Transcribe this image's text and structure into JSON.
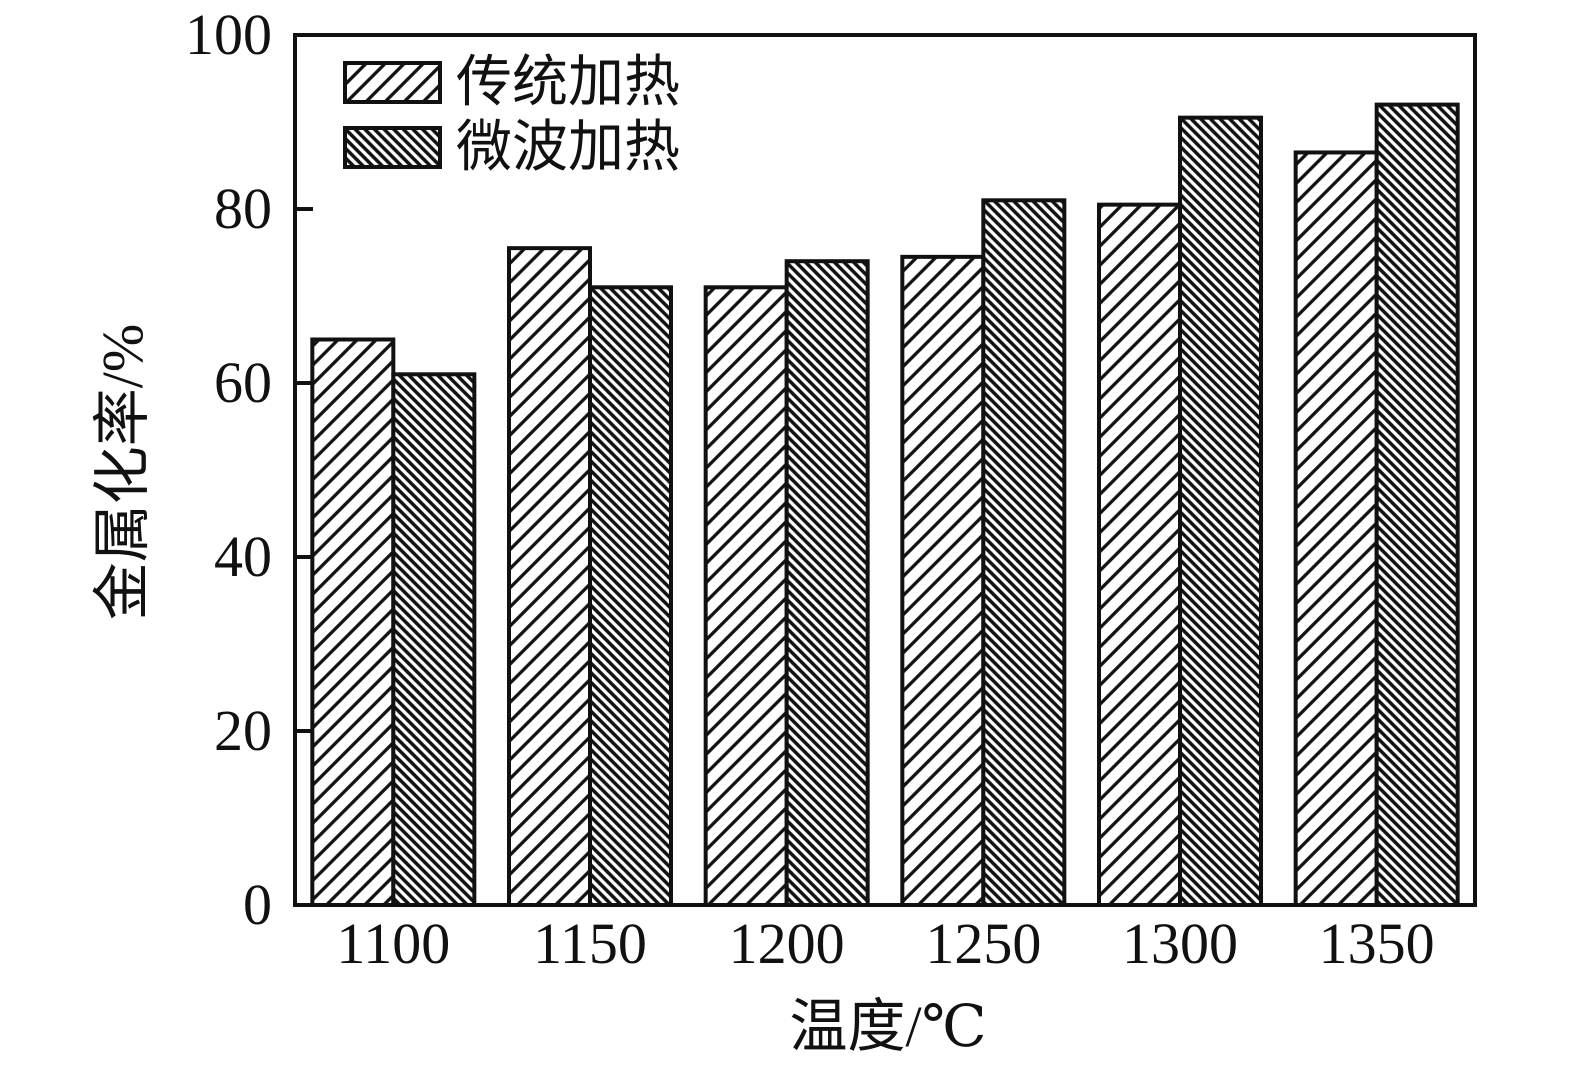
{
  "chart_data": {
    "type": "bar",
    "title": "",
    "categories": [
      "1100",
      "1150",
      "1200",
      "1250",
      "1300",
      "1350"
    ],
    "series": [
      {
        "name": "传统加热",
        "key": "traditional",
        "pattern_icon": "forward-diagonal-hatch",
        "values": [
          65,
          75.5,
          71,
          74.5,
          80.5,
          86.5
        ]
      },
      {
        "name": "微波加热",
        "key": "microwave",
        "pattern_icon": "backward-diagonal-hatch",
        "values": [
          61,
          71,
          74,
          81,
          90.5,
          92
        ]
      }
    ],
    "xlabel": "温度/℃",
    "ylabel": "金属化率/%",
    "ylim": [
      0,
      100
    ],
    "yticks": [
      0,
      20,
      40,
      60,
      80,
      100
    ],
    "grid": false,
    "legend_position": "top-left",
    "colors": {
      "ink": "#111111",
      "bar_fill_background": "#ffffff",
      "background": "#ffffff"
    }
  }
}
